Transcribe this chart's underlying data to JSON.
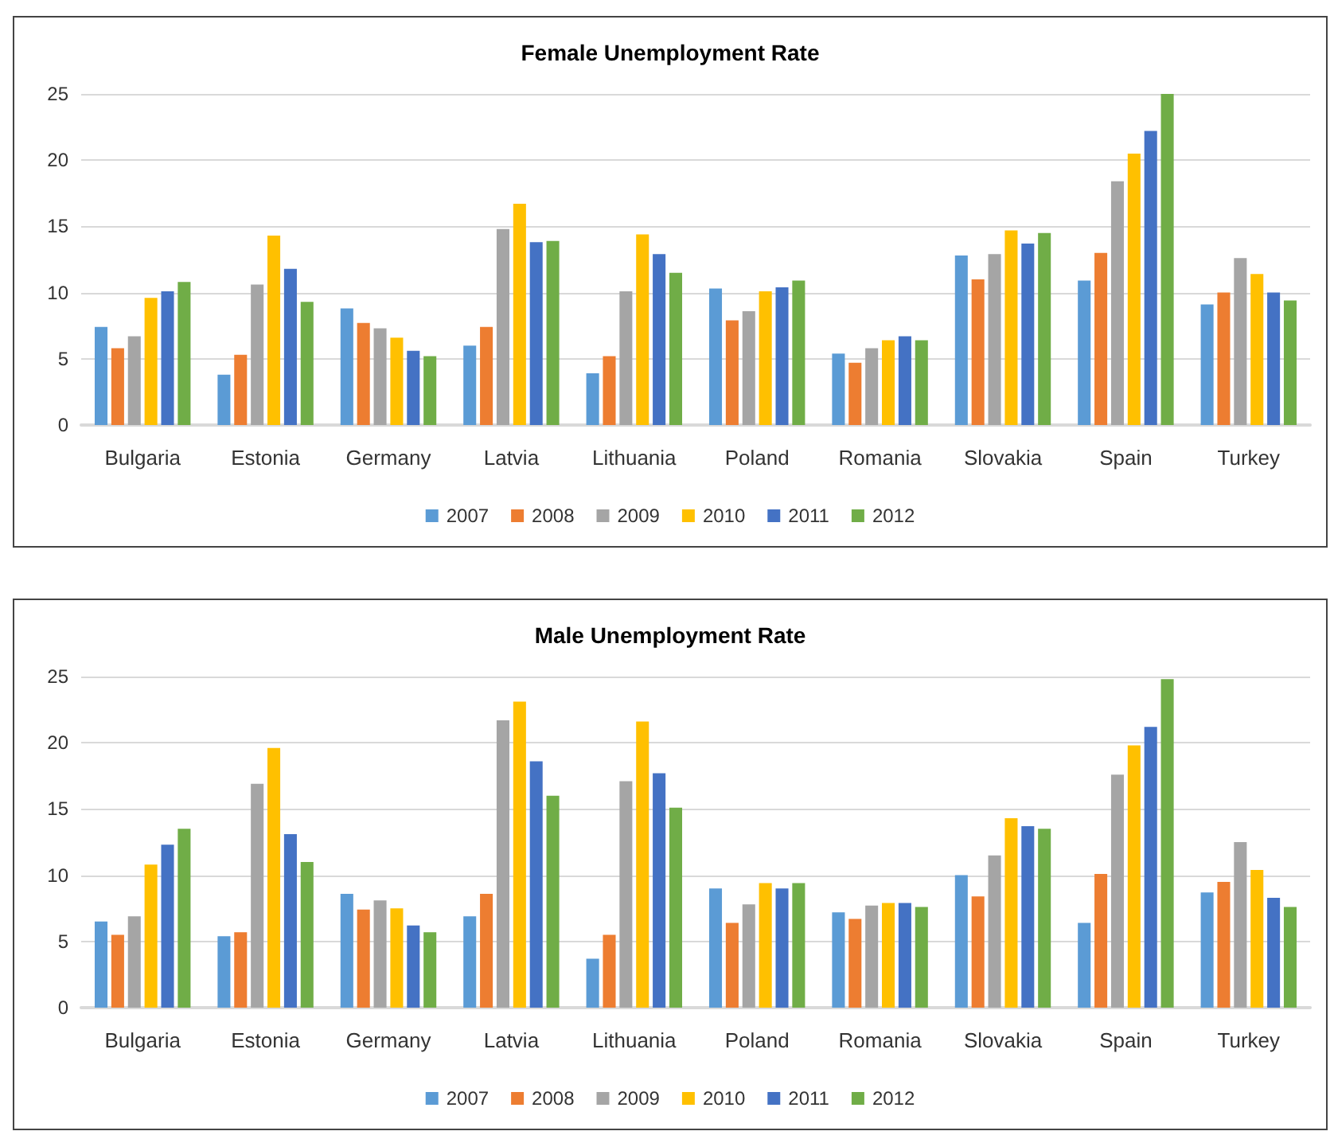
{
  "chart_data": [
    {
      "type": "bar",
      "title": "Female Unemployment Rate",
      "categories": [
        "Bulgaria",
        "Estonia",
        "Germany",
        "Latvia",
        "Lithuania",
        "Poland",
        "Romania",
        "Slovakia",
        "Spain",
        "Turkey"
      ],
      "series": [
        {
          "name": "2007",
          "color": "#5b9bd5",
          "values": [
            7.4,
            3.8,
            8.8,
            6.0,
            3.9,
            10.3,
            5.4,
            12.8,
            10.9,
            9.1
          ]
        },
        {
          "name": "2008",
          "color": "#ed7d31",
          "values": [
            5.8,
            5.3,
            7.7,
            7.4,
            5.2,
            7.9,
            4.7,
            11.0,
            13.0,
            10.0
          ]
        },
        {
          "name": "2009",
          "color": "#a5a5a5",
          "values": [
            6.7,
            10.6,
            7.3,
            14.8,
            10.1,
            8.6,
            5.8,
            12.9,
            18.4,
            12.6
          ]
        },
        {
          "name": "2010",
          "color": "#ffc000",
          "values": [
            9.6,
            14.3,
            6.6,
            16.7,
            14.4,
            10.1,
            6.4,
            14.7,
            20.5,
            11.4
          ]
        },
        {
          "name": "2011",
          "color": "#4472c4",
          "values": [
            10.1,
            11.8,
            5.6,
            13.8,
            12.9,
            10.4,
            6.7,
            13.7,
            22.2,
            10.0
          ]
        },
        {
          "name": "2012",
          "color": "#70ad47",
          "values": [
            10.8,
            9.3,
            5.2,
            13.9,
            11.5,
            10.9,
            6.4,
            14.5,
            25.0,
            9.4
          ]
        }
      ],
      "ylim": [
        0,
        25
      ],
      "yticks": [
        0,
        5,
        10,
        15,
        20,
        25
      ],
      "grid": "y",
      "legend": "bottom"
    },
    {
      "type": "bar",
      "title": "Male Unemployment Rate",
      "categories": [
        "Bulgaria",
        "Estonia",
        "Germany",
        "Latvia",
        "Lithuania",
        "Poland",
        "Romania",
        "Slovakia",
        "Spain",
        "Turkey"
      ],
      "series": [
        {
          "name": "2007",
          "color": "#5b9bd5",
          "values": [
            6.5,
            5.4,
            8.6,
            6.9,
            3.7,
            9.0,
            7.2,
            10.0,
            6.4,
            8.7
          ]
        },
        {
          "name": "2008",
          "color": "#ed7d31",
          "values": [
            5.5,
            5.7,
            7.4,
            8.6,
            5.5,
            6.4,
            6.7,
            8.4,
            10.1,
            9.5
          ]
        },
        {
          "name": "2009",
          "color": "#a5a5a5",
          "values": [
            6.9,
            16.9,
            8.1,
            21.7,
            17.1,
            7.8,
            7.7,
            11.5,
            17.6,
            12.5
          ]
        },
        {
          "name": "2010",
          "color": "#ffc000",
          "values": [
            10.8,
            19.6,
            7.5,
            23.1,
            21.6,
            9.4,
            7.9,
            14.3,
            19.8,
            10.4
          ]
        },
        {
          "name": "2011",
          "color": "#4472c4",
          "values": [
            12.3,
            13.1,
            6.2,
            18.6,
            17.7,
            9.0,
            7.9,
            13.7,
            21.2,
            8.3
          ]
        },
        {
          "name": "2012",
          "color": "#70ad47",
          "values": [
            13.5,
            11.0,
            5.7,
            16.0,
            15.1,
            9.4,
            7.6,
            13.5,
            24.8,
            7.6
          ]
        }
      ],
      "ylim": [
        0,
        25
      ],
      "yticks": [
        0,
        5,
        10,
        15,
        20,
        25
      ],
      "grid": "y",
      "legend": "bottom"
    }
  ]
}
